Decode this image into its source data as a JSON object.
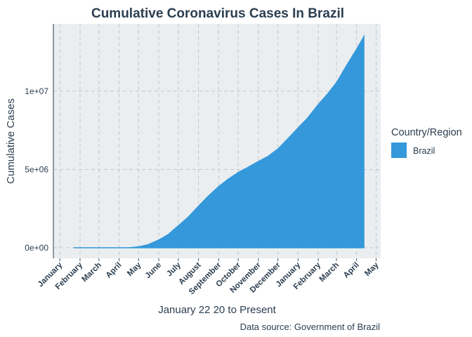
{
  "chart_data": {
    "type": "area",
    "title": "Cumulative Coronavirus Cases In Brazil",
    "xlabel": "January 22 20 to Present",
    "ylabel": "Cumulative Cases",
    "caption": "Data source: Government of Brazil",
    "x_ticks": [
      "January",
      "February",
      "March",
      "April",
      "May",
      "June",
      "July",
      "August",
      "September",
      "October",
      "November",
      "December",
      "January",
      "February",
      "March",
      "April",
      "May"
    ],
    "x_tick_dates": [
      "2020-01-01",
      "2020-02-01",
      "2020-03-01",
      "2020-04-01",
      "2020-05-01",
      "2020-06-01",
      "2020-07-01",
      "2020-08-01",
      "2020-09-01",
      "2020-10-01",
      "2020-11-01",
      "2020-12-01",
      "2021-01-01",
      "2021-02-01",
      "2021-03-01",
      "2021-04-01",
      "2021-05-01"
    ],
    "y_ticks": [
      {
        "value": 0,
        "label": "0e+00"
      },
      {
        "value": 5000000,
        "label": "5e+06"
      },
      {
        "value": 10000000,
        "label": "1e+07"
      }
    ],
    "x_range": [
      "2019-12-22",
      "2021-05-08"
    ],
    "ylim": [
      -680000,
      14300000
    ],
    "grid": true,
    "legend": {
      "title": "Country/Region",
      "position": "right"
    },
    "colors": {
      "fill": "#3498db",
      "panel": "#eaeef0",
      "grid": "#c2c8cc",
      "text": "#2c3e50",
      "axis_line": "#2c3e50"
    },
    "series": [
      {
        "name": "Brazil",
        "x": [
          "2020-01-22",
          "2020-02-26",
          "2020-03-15",
          "2020-04-01",
          "2020-04-15",
          "2020-05-01",
          "2020-05-15",
          "2020-06-01",
          "2020-06-15",
          "2020-07-01",
          "2020-07-15",
          "2020-08-01",
          "2020-08-15",
          "2020-09-01",
          "2020-09-15",
          "2020-10-01",
          "2020-10-15",
          "2020-11-01",
          "2020-11-15",
          "2020-12-01",
          "2020-12-15",
          "2021-01-01",
          "2021-01-15",
          "2021-02-01",
          "2021-02-15",
          "2021-03-01",
          "2021-03-15",
          "2021-04-01",
          "2021-04-10",
          "2021-04-13"
        ],
        "values": [
          0,
          0,
          200,
          6800,
          28000,
          90000,
          220000,
          530000,
          870000,
          1450000,
          1950000,
          2700000,
          3300000,
          3950000,
          4400000,
          4850000,
          5150000,
          5550000,
          5850000,
          6350000,
          6950000,
          7700000,
          8300000,
          9200000,
          9850000,
          10600000,
          11600000,
          12750000,
          13400000,
          13650000
        ]
      }
    ]
  }
}
